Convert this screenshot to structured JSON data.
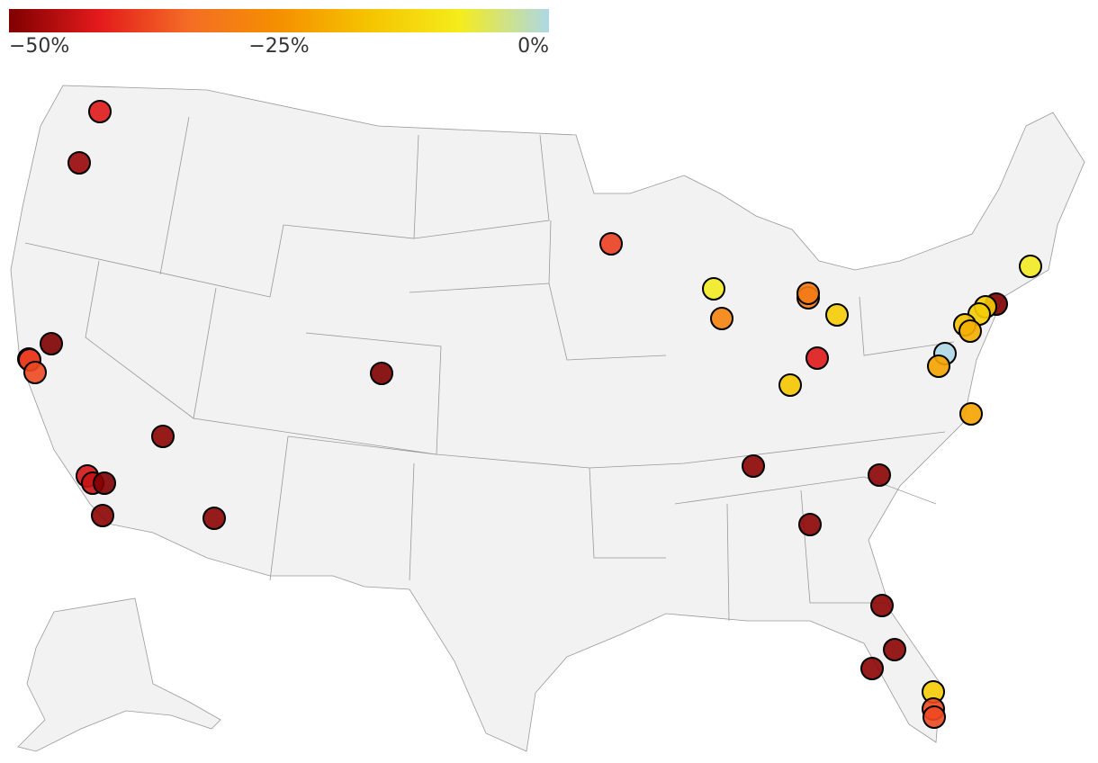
{
  "colorbar": {
    "range": [
      -50,
      0
    ],
    "colors": [
      "#800000",
      "#e31a1c",
      "#f46d25",
      "#f59000",
      "#f5c400",
      "#f5ec1a",
      "#add8e6"
    ],
    "ticks": [
      {
        "value": -50,
        "label": "−50%"
      },
      {
        "value": -25,
        "label": "−25%"
      },
      {
        "value": 0,
        "label": "0%"
      }
    ]
  },
  "points": {
    "values": [
      -42,
      -48,
      -50,
      -40,
      -38,
      -37,
      -50,
      -49,
      -43,
      -44,
      -50,
      -49,
      -49,
      -38,
      -8,
      -28,
      -30,
      -30,
      -15,
      -42,
      -16,
      -49,
      -49,
      -49,
      -49,
      -49,
      -49,
      -15,
      -37,
      -37,
      -8,
      -50,
      -15,
      -15,
      -17,
      -20,
      0,
      -22,
      -22
    ]
  }
}
